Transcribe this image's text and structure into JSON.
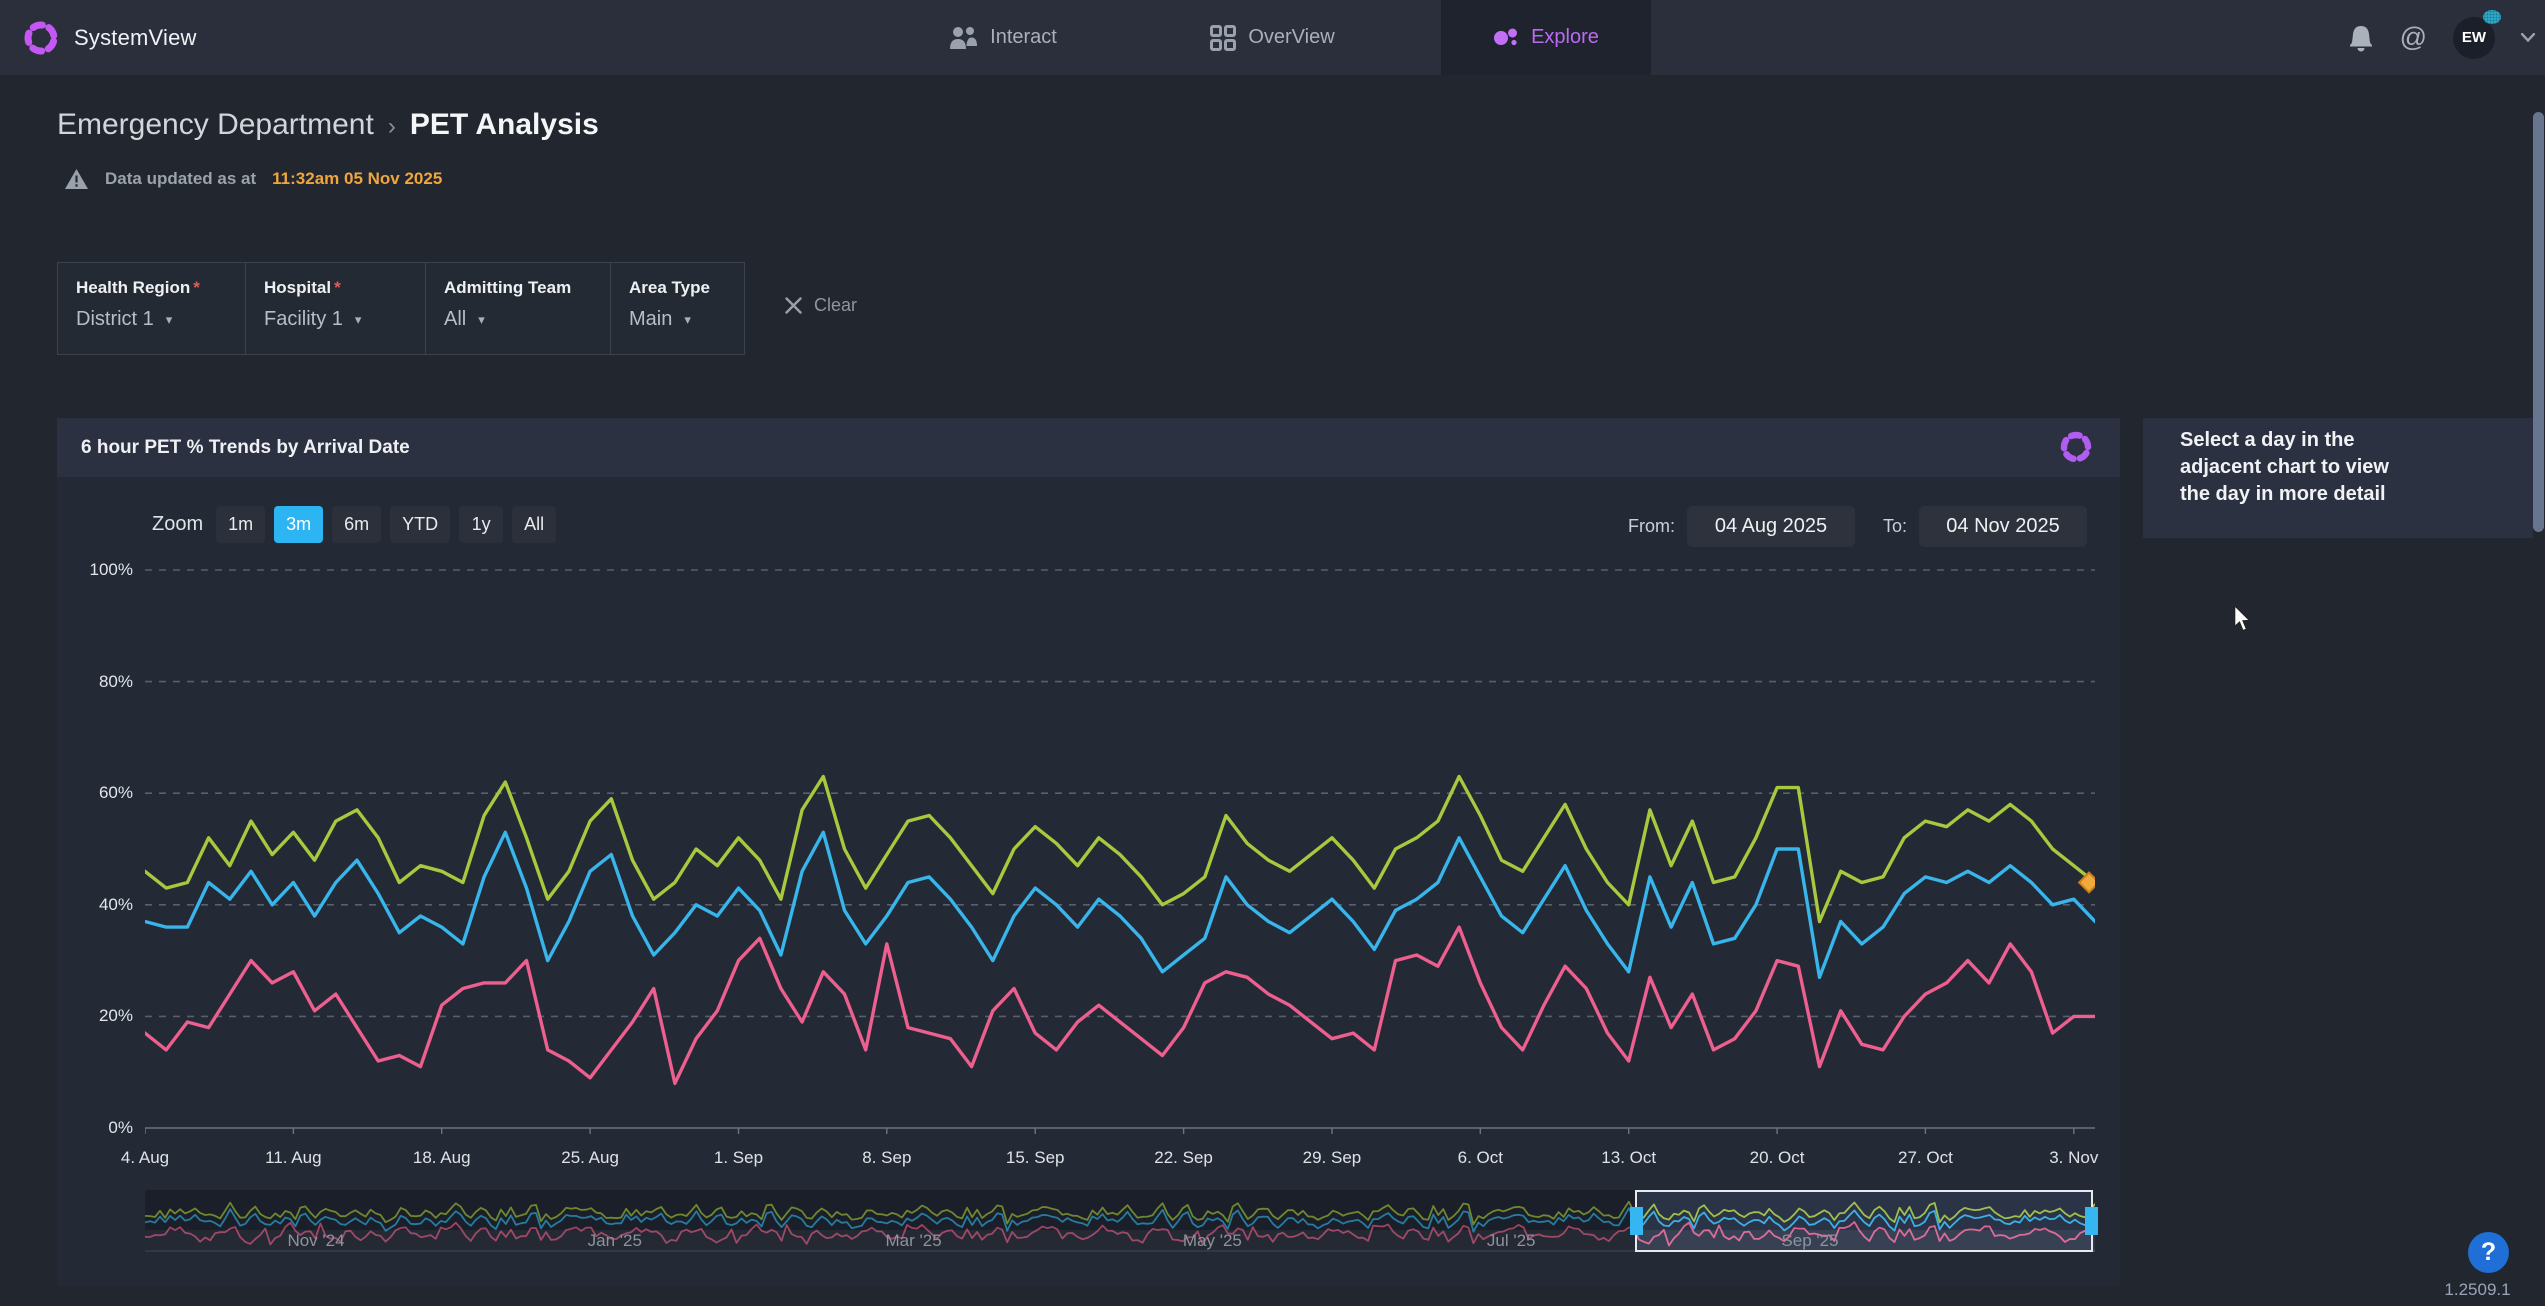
{
  "app": {
    "name": "SystemView",
    "version": "1.2509.1"
  },
  "nav": {
    "tabs": [
      {
        "label": "Interact",
        "icon": "people-icon",
        "active": false
      },
      {
        "label": "OverView",
        "icon": "grid-icon",
        "active": false
      },
      {
        "label": "Explore",
        "icon": "dots-cluster-icon",
        "active": true
      }
    ],
    "user_initials": "EW"
  },
  "breadcrumb": {
    "section": "Emergency Department",
    "separator": "›",
    "page": "PET Analysis"
  },
  "status": {
    "prefix": "Data updated as at",
    "timestamp": "11:32am 05 Nov 2025"
  },
  "filters": {
    "fields": [
      {
        "label": "Health Region",
        "required": true,
        "value": "District 1"
      },
      {
        "label": "Hospital",
        "required": true,
        "value": "Facility 1"
      },
      {
        "label": "Admitting Team",
        "required": false,
        "value": "All"
      },
      {
        "label": "Area Type",
        "required": false,
        "value": "Main"
      }
    ],
    "clear_label": "Clear"
  },
  "chart_panel": {
    "title": "6 hour PET % Trends by Arrival Date",
    "zoom": {
      "label": "Zoom",
      "options": [
        "1m",
        "3m",
        "6m",
        "YTD",
        "1y",
        "All"
      ],
      "active": "3m"
    },
    "from_label": "From:",
    "from_value": "04 Aug 2025",
    "to_label": "To:",
    "to_value": "04 Nov 2025"
  },
  "side_panel": {
    "message": "Select a day in the adjacent chart to view the day in more detail"
  },
  "help": {
    "label": "?"
  },
  "chart_data": {
    "type": "line",
    "title": "6 hour PET % Trends by Arrival Date",
    "xlabel": "Arrival Date",
    "ylabel": "PET %",
    "ylim": [
      0,
      100
    ],
    "grid": true,
    "legend": "none",
    "x_range": [
      "04 Aug 2025",
      "04 Nov 2025"
    ],
    "x_step": "1 day",
    "yticks": [
      "100%",
      "80%",
      "60%",
      "40%",
      "20%",
      "0%"
    ],
    "xticks": [
      "4. Aug",
      "11. Aug",
      "18. Aug",
      "25. Aug",
      "1. Sep",
      "8. Sep",
      "15. Sep",
      "22. Sep",
      "29. Sep",
      "6. Oct",
      "13. Oct",
      "20. Oct",
      "27. Oct",
      "3. Nov"
    ],
    "series": [
      {
        "name": "green-series",
        "color": "#a6c93e",
        "values": [
          46,
          43,
          44,
          52,
          47,
          55,
          49,
          53,
          48,
          55,
          57,
          52,
          44,
          47,
          46,
          44,
          56,
          62,
          52,
          41,
          46,
          55,
          59,
          48,
          41,
          44,
          50,
          47,
          52,
          48,
          41,
          57,
          63,
          50,
          43,
          49,
          55,
          56,
          52,
          47,
          42,
          50,
          54,
          51,
          47,
          52,
          49,
          45,
          40,
          42,
          45,
          56,
          51,
          48,
          46,
          49,
          52,
          48,
          43,
          50,
          52,
          55,
          63,
          56,
          48,
          46,
          52,
          58,
          50,
          44,
          40,
          57,
          47,
          55,
          44,
          45,
          52,
          61,
          61,
          37,
          46,
          44,
          45,
          52,
          55,
          54,
          57,
          55,
          58,
          55,
          50,
          47,
          44
        ]
      },
      {
        "name": "blue-series",
        "color": "#38b5ea",
        "values": [
          37,
          36,
          36,
          44,
          41,
          46,
          40,
          44,
          38,
          44,
          48,
          42,
          35,
          38,
          36,
          33,
          45,
          53,
          43,
          30,
          37,
          46,
          49,
          38,
          31,
          35,
          40,
          38,
          43,
          39,
          31,
          46,
          53,
          39,
          33,
          38,
          44,
          45,
          41,
          36,
          30,
          38,
          43,
          40,
          36,
          41,
          38,
          34,
          28,
          31,
          34,
          45,
          40,
          37,
          35,
          38,
          41,
          37,
          32,
          39,
          41,
          44,
          52,
          45,
          38,
          35,
          41,
          47,
          39,
          33,
          28,
          45,
          36,
          44,
          33,
          34,
          40,
          50,
          50,
          27,
          37,
          33,
          36,
          42,
          45,
          44,
          46,
          44,
          47,
          44,
          40,
          41,
          37
        ]
      },
      {
        "name": "pink-series",
        "color": "#ec5f8e",
        "values": [
          17,
          14,
          19,
          18,
          24,
          30,
          26,
          28,
          21,
          24,
          18,
          12,
          13,
          11,
          22,
          25,
          26,
          26,
          30,
          14,
          12,
          9,
          14,
          19,
          25,
          8,
          16,
          21,
          30,
          34,
          25,
          19,
          28,
          24,
          14,
          33,
          18,
          17,
          16,
          11,
          21,
          25,
          17,
          14,
          19,
          22,
          19,
          16,
          13,
          18,
          26,
          28,
          27,
          24,
          22,
          19,
          16,
          17,
          14,
          30,
          31,
          29,
          36,
          26,
          18,
          14,
          22,
          29,
          25,
          17,
          12,
          27,
          18,
          24,
          14,
          16,
          21,
          30,
          29,
          11,
          21,
          15,
          14,
          20,
          24,
          26,
          30,
          26,
          33,
          28,
          17,
          20,
          20
        ]
      }
    ],
    "end_marker": {
      "series": "green-series",
      "shape": "diamond",
      "color": "#f2a93b"
    },
    "navigator": {
      "labels": [
        "Nov '24",
        "Jan '25",
        "Mar '25",
        "May '25",
        "Jul '25",
        "Sep '25"
      ],
      "selection_range": [
        "04 Aug 2025",
        "04 Nov 2025"
      ],
      "selection_fraction": [
        0.764,
        0.999
      ]
    }
  }
}
